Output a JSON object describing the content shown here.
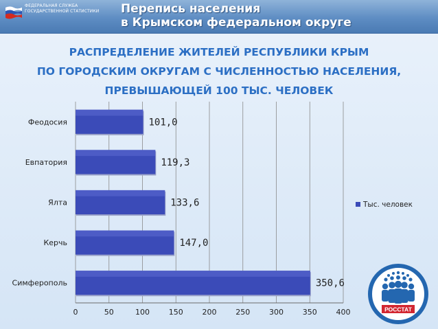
{
  "header": {
    "agency_line1": "Федеральная служба",
    "agency_line2": "государственной статистики",
    "title_line1": "Перепись населения",
    "title_line2": "в Крымском федеральном округе"
  },
  "colors": {
    "bar": "#3b4bb8",
    "title": "#2c6fc4",
    "header": "#5e8dc3",
    "logo": "#2467b0",
    "logo_red": "#d22630"
  },
  "logo": {
    "label": "РОССТАТ"
  },
  "chart_data": {
    "type": "bar",
    "orientation": "horizontal",
    "title_lines": [
      "Распределение жителей Республики Крым",
      "по городским округам с численностью населения,",
      "превышающей 100 тыс. человек"
    ],
    "categories": [
      "Симферополь",
      "Керчь",
      "Ялта",
      "Евпатория",
      "Феодосия"
    ],
    "series": [
      {
        "name": "Тыс. человек",
        "values": [
          350.6,
          147.0,
          133.6,
          119.3,
          101.0
        ],
        "labels": [
          "350,6",
          "147,0",
          "133,6",
          "119,3",
          "101,0"
        ]
      }
    ],
    "xlim": [
      0,
      400
    ],
    "xticks": [
      0,
      50,
      100,
      150,
      200,
      250,
      300,
      350,
      400
    ],
    "grid": true,
    "legend": "right"
  }
}
